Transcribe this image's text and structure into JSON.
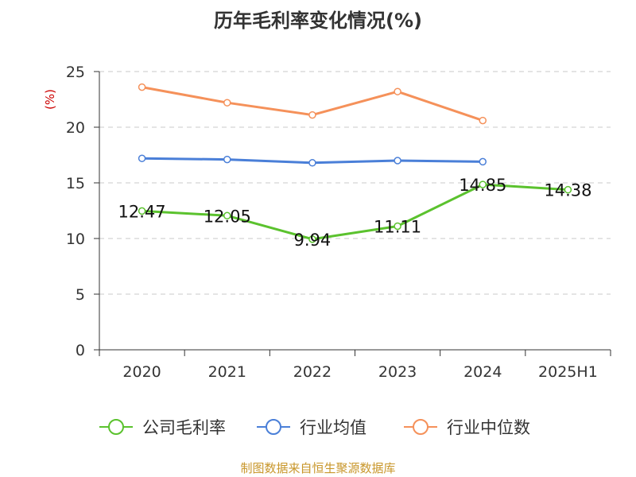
{
  "chart_data": {
    "type": "line",
    "title": "历年毛利率变化情况(%)",
    "ylabel": "(%)",
    "ylim": [
      0,
      25
    ],
    "yticks": [
      0,
      5,
      10,
      15,
      20,
      25
    ],
    "categories": [
      "2020",
      "2021",
      "2022",
      "2023",
      "2024",
      "2025H1"
    ],
    "grid": true,
    "legend_position": "bottom",
    "series": [
      {
        "name": "公司毛利率",
        "color": "#5bc22e",
        "values": [
          12.47,
          12.05,
          9.94,
          11.11,
          14.85,
          14.38
        ],
        "labels": [
          "12.47",
          "12.05",
          "9.94",
          "11.11",
          "14.85",
          "14.38"
        ]
      },
      {
        "name": "行业均值",
        "color": "#4a7fd8",
        "values": [
          17.2,
          17.1,
          16.8,
          17.0,
          16.9,
          null
        ]
      },
      {
        "name": "行业中位数",
        "color": "#f5915a",
        "values": [
          23.6,
          22.2,
          21.1,
          23.2,
          20.6,
          null
        ]
      }
    ]
  },
  "footer": {
    "source": "制图数据来自恒生聚源数据库"
  }
}
